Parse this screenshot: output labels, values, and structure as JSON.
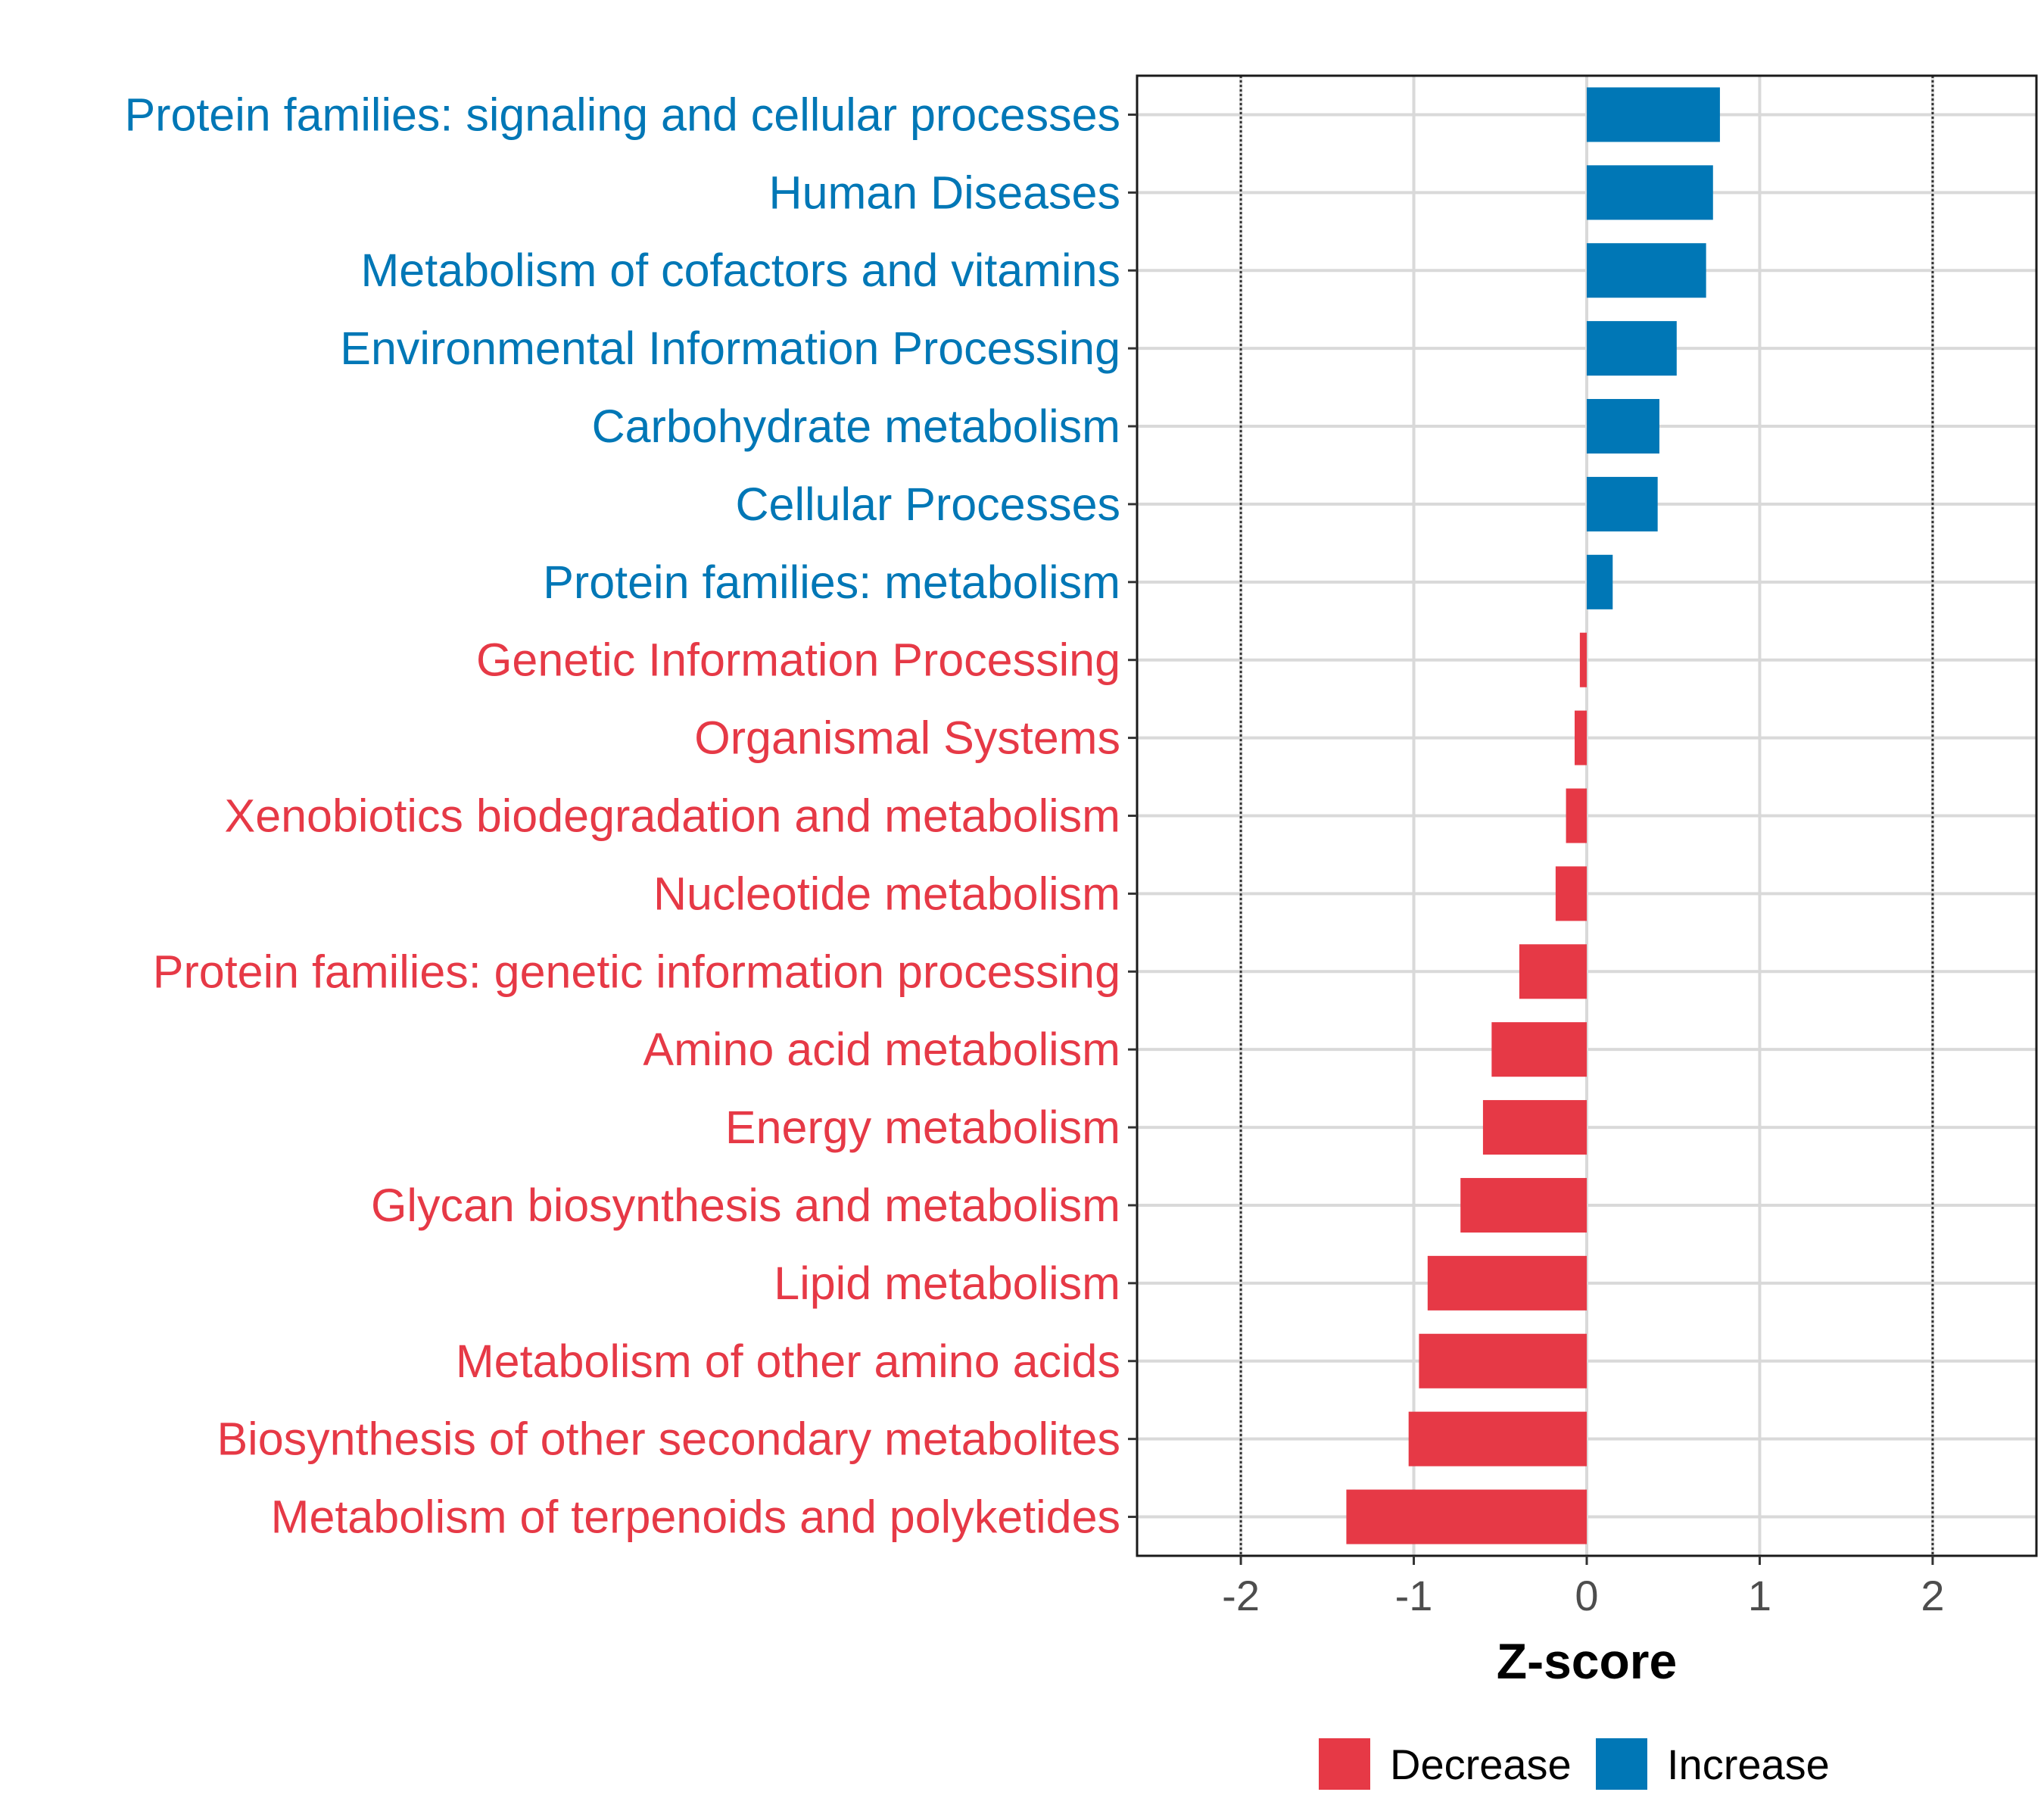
{
  "chart_data": {
    "type": "bar",
    "orientation": "horizontal",
    "title": "",
    "xlabel": "Z-score",
    "ylabel": "",
    "xlim": [
      -2.6,
      2.6
    ],
    "x_ticks": [
      -2,
      -1,
      0,
      1,
      2
    ],
    "x_tick_labels": [
      "-2",
      "-1",
      "0",
      "1",
      "2"
    ],
    "reference_lines": [
      -2,
      2
    ],
    "grid": true,
    "categories": [
      "Protein families: signaling and cellular processes",
      "Human Diseases",
      "Metabolism of cofactors and vitamins",
      "Environmental Information Processing",
      "Carbohydrate metabolism",
      "Cellular Processes",
      "Protein families: metabolism",
      "Genetic Information Processing",
      "Organismal Systems",
      "Xenobiotics biodegradation and metabolism",
      "Nucleotide metabolism",
      "Protein families: genetic information processing",
      "Amino acid metabolism",
      "Energy metabolism",
      "Glycan biosynthesis and metabolism",
      "Lipid metabolism",
      "Metabolism of other amino acids",
      "Biosynthesis of other secondary metabolites",
      "Metabolism of terpenoids and polyketides"
    ],
    "values": [
      0.77,
      0.73,
      0.69,
      0.52,
      0.42,
      0.41,
      0.15,
      -0.04,
      -0.07,
      -0.12,
      -0.18,
      -0.39,
      -0.55,
      -0.6,
      -0.73,
      -0.92,
      -0.97,
      -1.03,
      -1.39
    ],
    "groups": [
      "Increase",
      "Increase",
      "Increase",
      "Increase",
      "Increase",
      "Increase",
      "Increase",
      "Decrease",
      "Decrease",
      "Decrease",
      "Decrease",
      "Decrease",
      "Decrease",
      "Decrease",
      "Decrease",
      "Decrease",
      "Decrease",
      "Decrease",
      "Decrease"
    ],
    "legend": {
      "position": "bottom",
      "items": [
        {
          "label": "Decrease",
          "color": "#E63946"
        },
        {
          "label": "Increase",
          "color": "#0077B6"
        }
      ]
    },
    "colors": {
      "Decrease": "#E63946",
      "Increase": "#0077B6"
    }
  }
}
